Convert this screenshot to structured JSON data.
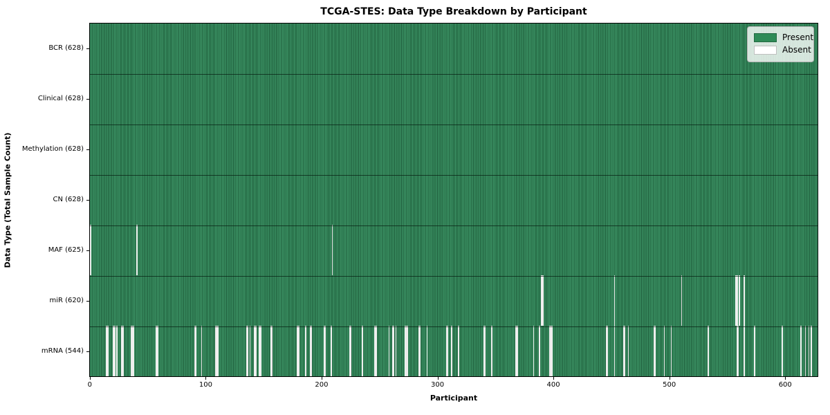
{
  "chart_data": {
    "type": "heatmap",
    "title": "TCGA-STES: Data Type Breakdown by Participant",
    "xlabel": "Participant",
    "ylabel": "Data Type (Total Sample Count)",
    "n_participants": 628,
    "x_axis": {
      "min": -0.5,
      "max": 628.5,
      "ticks": [
        0,
        100,
        200,
        300,
        400,
        500,
        600
      ]
    },
    "legend": [
      {
        "label": "Present",
        "color": "#2e8b57"
      },
      {
        "label": "Absent",
        "color": "#ffffff"
      }
    ],
    "colors": {
      "present": "#2e8b57",
      "present_light": "#3a8f62",
      "present_dark": "#1e5c3a",
      "absent": "#ffffff",
      "row_divider": "#0a2315",
      "plot_border": "#000000"
    },
    "rows": [
      {
        "name": "BCR",
        "label": "BCR (628)",
        "count": 628,
        "absent": []
      },
      {
        "name": "Clinical",
        "label": "Clinical (628)",
        "count": 628,
        "absent": []
      },
      {
        "name": "Methylation",
        "label": "Methylation (628)",
        "count": 628,
        "absent": []
      },
      {
        "name": "CN",
        "label": "CN (628)",
        "count": 628,
        "absent": []
      },
      {
        "name": "MAF",
        "label": "MAF (625)",
        "count": 625,
        "absent": [
          0,
          40,
          209
        ]
      },
      {
        "name": "miR",
        "label": "miR (620)",
        "count": 620,
        "absent": [
          390,
          391,
          453,
          511,
          558,
          559,
          561,
          565
        ]
      },
      {
        "name": "mRNA",
        "label": "mRNA (544)",
        "count": 544,
        "absent": [
          14,
          15,
          20,
          21,
          23,
          27,
          28,
          35,
          36,
          37,
          57,
          58,
          90,
          91,
          96,
          108,
          109,
          110,
          135,
          136,
          138,
          142,
          143,
          146,
          147,
          156,
          157,
          179,
          180,
          186,
          190,
          191,
          202,
          203,
          208,
          224,
          225,
          235,
          246,
          247,
          258,
          261,
          262,
          264,
          272,
          273,
          274,
          284,
          285,
          291,
          308,
          309,
          312,
          318,
          340,
          341,
          347,
          368,
          369,
          383,
          388,
          397,
          398,
          399,
          446,
          447,
          453,
          461,
          462,
          465,
          487,
          488,
          496,
          502,
          534,
          559,
          560,
          565,
          574,
          598,
          614,
          618,
          621,
          623
        ]
      }
    ]
  }
}
